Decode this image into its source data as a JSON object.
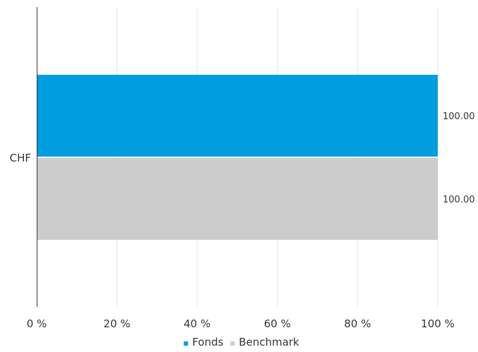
{
  "chart_data": {
    "type": "bar",
    "orientation": "horizontal",
    "categories": [
      "CHF"
    ],
    "series": [
      {
        "name": "Fonds",
        "values": [
          100.0
        ],
        "value_labels": [
          "100.00"
        ],
        "color": "#009ee0"
      },
      {
        "name": "Benchmark",
        "values": [
          100.0
        ],
        "value_labels": [
          "100.00"
        ],
        "color": "#cccccc"
      }
    ],
    "xlim": [
      0,
      100
    ],
    "x_ticks": [
      0,
      20,
      40,
      60,
      80,
      100
    ],
    "x_tick_labels": [
      "0 %",
      "20 %",
      "40 %",
      "60 %",
      "80 %",
      "100 %"
    ],
    "grid": true,
    "gridline_color": "#e6e6e6",
    "axis_color": "#333333",
    "legend_position": "bottom-center"
  }
}
